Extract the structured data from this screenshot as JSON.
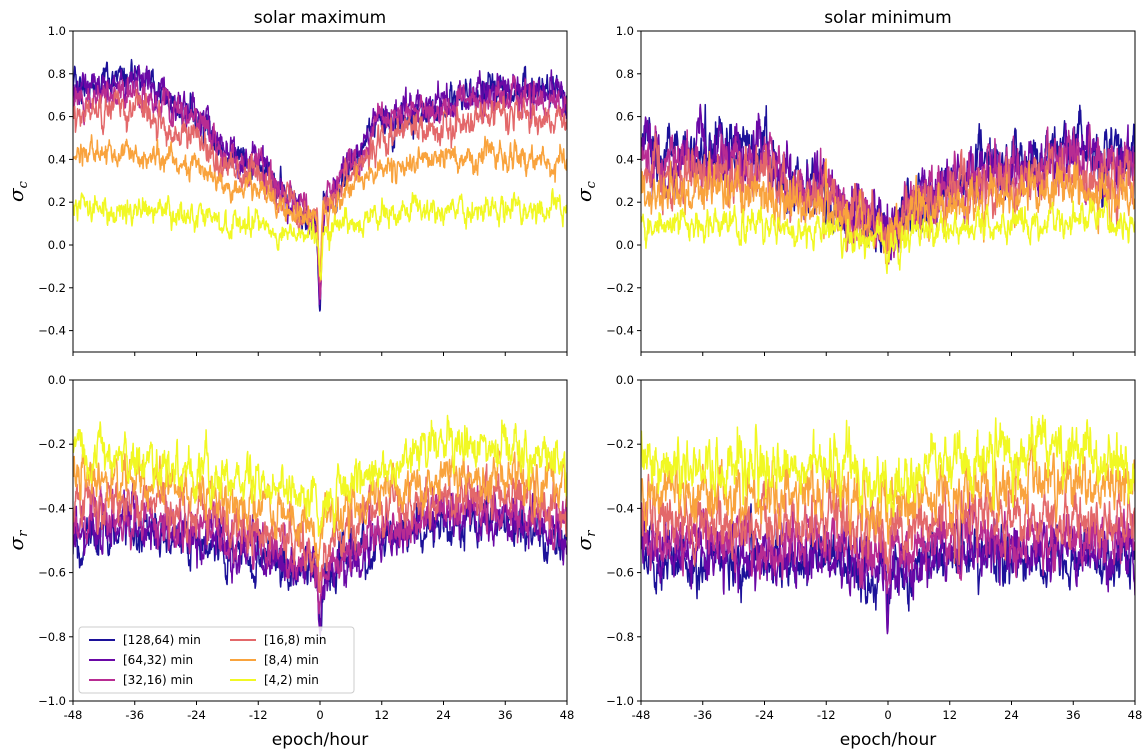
{
  "chart_data": {
    "type": "line",
    "x_label": "epoch/hour",
    "x_range": [
      -48,
      48
    ],
    "x_ticks": [
      -48,
      -36,
      -24,
      -12,
      0,
      12,
      24,
      36,
      48
    ],
    "series_styles": [
      {
        "label": "[128,64) min",
        "color": "#1c1199"
      },
      {
        "label": "[64,32) min",
        "color": "#6a08a6"
      },
      {
        "label": "[32,16) min",
        "color": "#b82c92"
      },
      {
        "label": "[16,8) min",
        "color": "#e3686a"
      },
      {
        "label": "[8,4) min",
        "color": "#f9a33d"
      },
      {
        "label": "[4,2) min",
        "color": "#f1f823"
      }
    ],
    "legend": {
      "location": "lower-left",
      "columns": 2
    },
    "panels": [
      {
        "id": "top-left",
        "title": "solar maximum",
        "y_symbol": "σ",
        "y_subscript": "c",
        "y_range": [
          -0.5,
          1.0
        ],
        "y_ticks": [
          -0.4,
          -0.2,
          0.0,
          0.2,
          0.4,
          0.6,
          0.8,
          1.0
        ],
        "show_xticklabels": false,
        "show_xlabel": false,
        "show_legend": false,
        "noise": [
          0.05,
          0.05,
          0.05,
          0.05,
          0.04,
          0.04
        ],
        "dip": [
          [
            -0.45,
            0.3
          ],
          [
            -0.42,
            0.3
          ],
          [
            -0.38,
            0.3
          ],
          [
            -0.32,
            0.3
          ],
          [
            -0.25,
            0.3
          ],
          [
            -0.15,
            0.3
          ]
        ],
        "series_anchors": [
          {
            "x": [
              -48,
              -36,
              -24,
              -18,
              -12,
              -6,
              -2,
              2,
              6,
              12,
              24,
              36,
              48
            ],
            "y": [
              0.74,
              0.78,
              0.6,
              0.4,
              0.38,
              0.2,
              0.1,
              0.24,
              0.38,
              0.58,
              0.65,
              0.74,
              0.68
            ]
          },
          {
            "x": [
              -48,
              -36,
              -24,
              -18,
              -12,
              -6,
              -2,
              2,
              6,
              12,
              24,
              36,
              48
            ],
            "y": [
              0.73,
              0.76,
              0.62,
              0.42,
              0.4,
              0.22,
              0.12,
              0.25,
              0.4,
              0.6,
              0.68,
              0.74,
              0.7
            ]
          },
          {
            "x": [
              -48,
              -36,
              -24,
              -18,
              -12,
              -6,
              -2,
              2,
              6,
              12,
              24,
              36,
              48
            ],
            "y": [
              0.68,
              0.72,
              0.58,
              0.4,
              0.38,
              0.22,
              0.12,
              0.24,
              0.38,
              0.58,
              0.63,
              0.7,
              0.65
            ]
          },
          {
            "x": [
              -48,
              -36,
              -24,
              -18,
              -12,
              -6,
              -2,
              2,
              6,
              12,
              24,
              36,
              48
            ],
            "y": [
              0.6,
              0.62,
              0.5,
              0.36,
              0.34,
              0.2,
              0.12,
              0.22,
              0.34,
              0.5,
              0.56,
              0.62,
              0.58
            ]
          },
          {
            "x": [
              -48,
              -36,
              -24,
              -18,
              -12,
              -6,
              -2,
              2,
              6,
              12,
              24,
              36,
              48
            ],
            "y": [
              0.42,
              0.44,
              0.36,
              0.27,
              0.26,
              0.18,
              0.12,
              0.18,
              0.27,
              0.36,
              0.4,
              0.42,
              0.38
            ]
          },
          {
            "x": [
              -48,
              -36,
              -24,
              -18,
              -12,
              -6,
              -2,
              2,
              6,
              12,
              24,
              36,
              48
            ],
            "y": [
              0.17,
              0.16,
              0.13,
              0.11,
              0.1,
              0.06,
              0.04,
              0.07,
              0.1,
              0.14,
              0.16,
              0.17,
              0.15
            ]
          }
        ]
      },
      {
        "id": "top-right",
        "title": "solar minimum",
        "y_symbol": "σ",
        "y_subscript": "c",
        "y_range": [
          -0.5,
          1.0
        ],
        "y_ticks": [
          -0.4,
          -0.2,
          0.0,
          0.2,
          0.4,
          0.6,
          0.8,
          1.0
        ],
        "show_xticklabels": false,
        "show_xlabel": false,
        "show_legend": false,
        "noise": [
          0.09,
          0.09,
          0.08,
          0.08,
          0.07,
          0.05
        ],
        "dip": [
          [
            -0.08,
            0.4
          ],
          [
            -0.08,
            0.4
          ],
          [
            -0.07,
            0.4
          ],
          [
            -0.06,
            0.4
          ],
          [
            -0.05,
            0.4
          ],
          [
            -0.04,
            0.4
          ]
        ],
        "series_anchors": [
          {
            "x": [
              -48,
              -36,
              -24,
              -18,
              -12,
              -6,
              0,
              6,
              12,
              24,
              36,
              48
            ],
            "y": [
              0.45,
              0.42,
              0.44,
              0.28,
              0.25,
              0.12,
              0.1,
              0.2,
              0.3,
              0.38,
              0.46,
              0.4
            ]
          },
          {
            "x": [
              -48,
              -36,
              -24,
              -18,
              -12,
              -6,
              0,
              6,
              12,
              24,
              36,
              48
            ],
            "y": [
              0.44,
              0.42,
              0.42,
              0.28,
              0.26,
              0.14,
              0.1,
              0.2,
              0.3,
              0.38,
              0.45,
              0.38
            ]
          },
          {
            "x": [
              -48,
              -36,
              -24,
              -18,
              -12,
              -6,
              0,
              6,
              12,
              24,
              36,
              48
            ],
            "y": [
              0.4,
              0.38,
              0.38,
              0.26,
              0.24,
              0.14,
              0.1,
              0.2,
              0.28,
              0.34,
              0.42,
              0.35
            ]
          },
          {
            "x": [
              -48,
              -36,
              -24,
              -18,
              -12,
              -6,
              0,
              6,
              12,
              24,
              36,
              48
            ],
            "y": [
              0.34,
              0.32,
              0.33,
              0.23,
              0.22,
              0.12,
              0.09,
              0.18,
              0.25,
              0.3,
              0.36,
              0.3
            ]
          },
          {
            "x": [
              -48,
              -36,
              -24,
              -18,
              -12,
              -6,
              0,
              6,
              12,
              24,
              36,
              48
            ],
            "y": [
              0.25,
              0.24,
              0.24,
              0.18,
              0.17,
              0.1,
              0.07,
              0.14,
              0.19,
              0.23,
              0.27,
              0.22
            ]
          },
          {
            "x": [
              -48,
              -36,
              -24,
              -18,
              -12,
              -6,
              0,
              6,
              12,
              24,
              36,
              48
            ],
            "y": [
              0.1,
              0.1,
              0.1,
              0.07,
              0.06,
              0.03,
              0.02,
              0.05,
              0.07,
              0.09,
              0.11,
              0.09
            ]
          }
        ]
      },
      {
        "id": "bottom-left",
        "title": "",
        "y_symbol": "σ",
        "y_subscript": "r",
        "y_range": [
          -1.0,
          0.0
        ],
        "y_ticks": [
          -1.0,
          -0.8,
          -0.6,
          -0.4,
          -0.2,
          0.0
        ],
        "show_xticklabels": true,
        "show_xlabel": true,
        "show_legend": true,
        "noise": [
          0.045,
          0.045,
          0.045,
          0.045,
          0.045,
          0.045
        ],
        "dip": [
          [
            -0.15,
            0.3
          ],
          [
            -0.14,
            0.3
          ],
          [
            -0.12,
            0.3
          ],
          [
            -0.1,
            0.3
          ],
          [
            -0.08,
            0.3
          ],
          [
            -0.06,
            0.3
          ]
        ],
        "series_anchors": [
          {
            "x": [
              -48,
              -36,
              -24,
              -12,
              -6,
              0,
              6,
              12,
              24,
              36,
              48
            ],
            "y": [
              -0.5,
              -0.46,
              -0.5,
              -0.56,
              -0.6,
              -0.62,
              -0.56,
              -0.5,
              -0.45,
              -0.44,
              -0.5
            ]
          },
          {
            "x": [
              -48,
              -36,
              -24,
              -12,
              -6,
              0,
              6,
              12,
              24,
              36,
              48
            ],
            "y": [
              -0.48,
              -0.45,
              -0.49,
              -0.55,
              -0.58,
              -0.6,
              -0.55,
              -0.49,
              -0.44,
              -0.43,
              -0.49
            ]
          },
          {
            "x": [
              -48,
              -36,
              -24,
              -12,
              -6,
              0,
              6,
              12,
              24,
              36,
              48
            ],
            "y": [
              -0.44,
              -0.42,
              -0.46,
              -0.52,
              -0.55,
              -0.58,
              -0.52,
              -0.46,
              -0.41,
              -0.4,
              -0.46
            ]
          },
          {
            "x": [
              -48,
              -36,
              -24,
              -12,
              -6,
              0,
              6,
              12,
              24,
              36,
              48
            ],
            "y": [
              -0.38,
              -0.37,
              -0.41,
              -0.46,
              -0.49,
              -0.52,
              -0.46,
              -0.41,
              -0.36,
              -0.36,
              -0.41
            ]
          },
          {
            "x": [
              -48,
              -36,
              -24,
              -12,
              -6,
              0,
              6,
              12,
              24,
              36,
              48
            ],
            "y": [
              -0.3,
              -0.31,
              -0.35,
              -0.4,
              -0.42,
              -0.46,
              -0.4,
              -0.35,
              -0.3,
              -0.3,
              -0.34
            ]
          },
          {
            "x": [
              -48,
              -36,
              -24,
              -12,
              -6,
              0,
              6,
              12,
              24,
              36,
              48
            ],
            "y": [
              -0.22,
              -0.25,
              -0.29,
              -0.33,
              -0.36,
              -0.4,
              -0.33,
              -0.28,
              -0.2,
              -0.22,
              -0.26
            ]
          }
        ]
      },
      {
        "id": "bottom-right",
        "title": "",
        "y_symbol": "σ",
        "y_subscript": "r",
        "y_range": [
          -1.0,
          0.0
        ],
        "y_ticks": [
          -1.0,
          -0.8,
          -0.6,
          -0.4,
          -0.2,
          0.0
        ],
        "show_xticklabels": true,
        "show_xlabel": true,
        "show_legend": false,
        "noise": [
          0.055,
          0.055,
          0.055,
          0.055,
          0.055,
          0.06
        ],
        "dip": [
          [
            -0.2,
            0.3
          ],
          [
            -0.16,
            0.3
          ],
          [
            -0.12,
            0.3
          ],
          [
            -0.08,
            0.3
          ],
          [
            -0.06,
            0.3
          ],
          [
            -0.04,
            0.3
          ]
        ],
        "series_anchors": [
          {
            "x": [
              -48,
              -36,
              -24,
              -12,
              0,
              12,
              24,
              36,
              48
            ],
            "y": [
              -0.54,
              -0.56,
              -0.58,
              -0.56,
              -0.6,
              -0.56,
              -0.55,
              -0.55,
              -0.55
            ]
          },
          {
            "x": [
              -48,
              -36,
              -24,
              -12,
              0,
              12,
              24,
              36,
              48
            ],
            "y": [
              -0.52,
              -0.54,
              -0.56,
              -0.54,
              -0.58,
              -0.54,
              -0.53,
              -0.53,
              -0.53
            ]
          },
          {
            "x": [
              -48,
              -36,
              -24,
              -12,
              0,
              12,
              24,
              36,
              48
            ],
            "y": [
              -0.49,
              -0.5,
              -0.52,
              -0.5,
              -0.54,
              -0.5,
              -0.49,
              -0.49,
              -0.49
            ]
          },
          {
            "x": [
              -48,
              -36,
              -24,
              -12,
              0,
              12,
              24,
              36,
              48
            ],
            "y": [
              -0.44,
              -0.45,
              -0.46,
              -0.44,
              -0.48,
              -0.44,
              -0.43,
              -0.43,
              -0.43
            ]
          },
          {
            "x": [
              -48,
              -36,
              -24,
              -12,
              0,
              12,
              24,
              36,
              48
            ],
            "y": [
              -0.36,
              -0.36,
              -0.37,
              -0.35,
              -0.4,
              -0.35,
              -0.33,
              -0.32,
              -0.34
            ]
          },
          {
            "x": [
              -48,
              -36,
              -24,
              -12,
              0,
              12,
              24,
              36,
              48
            ],
            "y": [
              -0.28,
              -0.28,
              -0.27,
              -0.25,
              -0.32,
              -0.26,
              -0.24,
              -0.22,
              -0.26
            ]
          }
        ]
      }
    ]
  }
}
